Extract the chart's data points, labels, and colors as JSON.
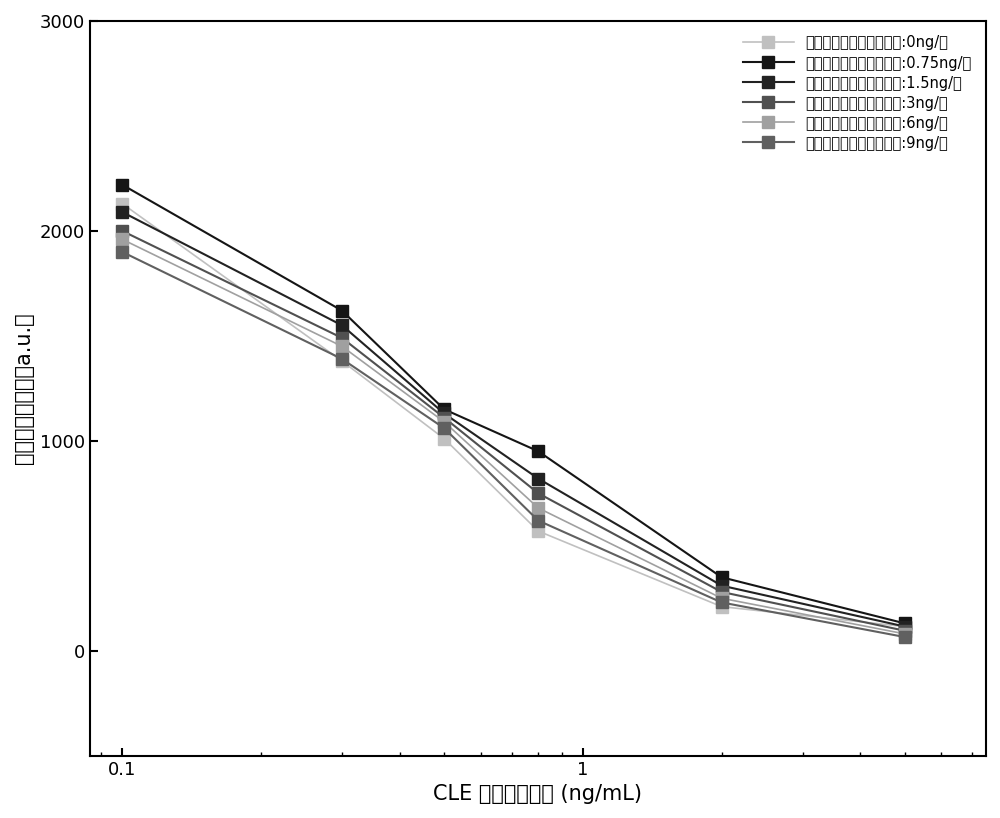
{
  "x_values": [
    0.1,
    0.3,
    0.5,
    0.8,
    2.0,
    5.0
  ],
  "series": [
    {
      "label": "药光微球抵体复合物浓度:0ng/条",
      "color": "#c0c0c0",
      "linewidth": 1.2,
      "y": [
        2130,
        1380,
        1010,
        570,
        210,
        115
      ]
    },
    {
      "label": "药光微球抵体复合物浓度:0.75ng/条",
      "color": "#151515",
      "linewidth": 1.5,
      "y": [
        2220,
        1620,
        1150,
        950,
        350,
        130
      ]
    },
    {
      "label": "药光微球抵体复合物浓度:1.5ng/条",
      "color": "#222222",
      "linewidth": 1.5,
      "y": [
        2090,
        1550,
        1130,
        820,
        310,
        115
      ]
    },
    {
      "label": "药光微球抵体复合物浓度:3ng/条",
      "color": "#505050",
      "linewidth": 1.5,
      "y": [
        2000,
        1490,
        1110,
        750,
        280,
        95
      ]
    },
    {
      "label": "药光微球抵体复合物浓度:6ng/条",
      "color": "#a0a0a0",
      "linewidth": 1.2,
      "y": [
        1960,
        1450,
        1090,
        680,
        250,
        80
      ]
    },
    {
      "label": "药光微球抵体复合物浓度:9ng/条",
      "color": "#606060",
      "linewidth": 1.5,
      "y": [
        1900,
        1390,
        1060,
        620,
        230,
        65
      ]
    }
  ],
  "xlabel": "CLE 标准曲线浓度 (ng/mL)",
  "ylabel": "胶体金显色强度（a.u.）",
  "ylim": [
    -500,
    3000
  ],
  "yticks": [
    0,
    1000,
    2000,
    3000
  ],
  "marker": "s",
  "markersize": 9,
  "background_color": "#ffffff",
  "legend_fontsize": 10.5,
  "axis_fontsize": 15,
  "tick_fontsize": 13
}
